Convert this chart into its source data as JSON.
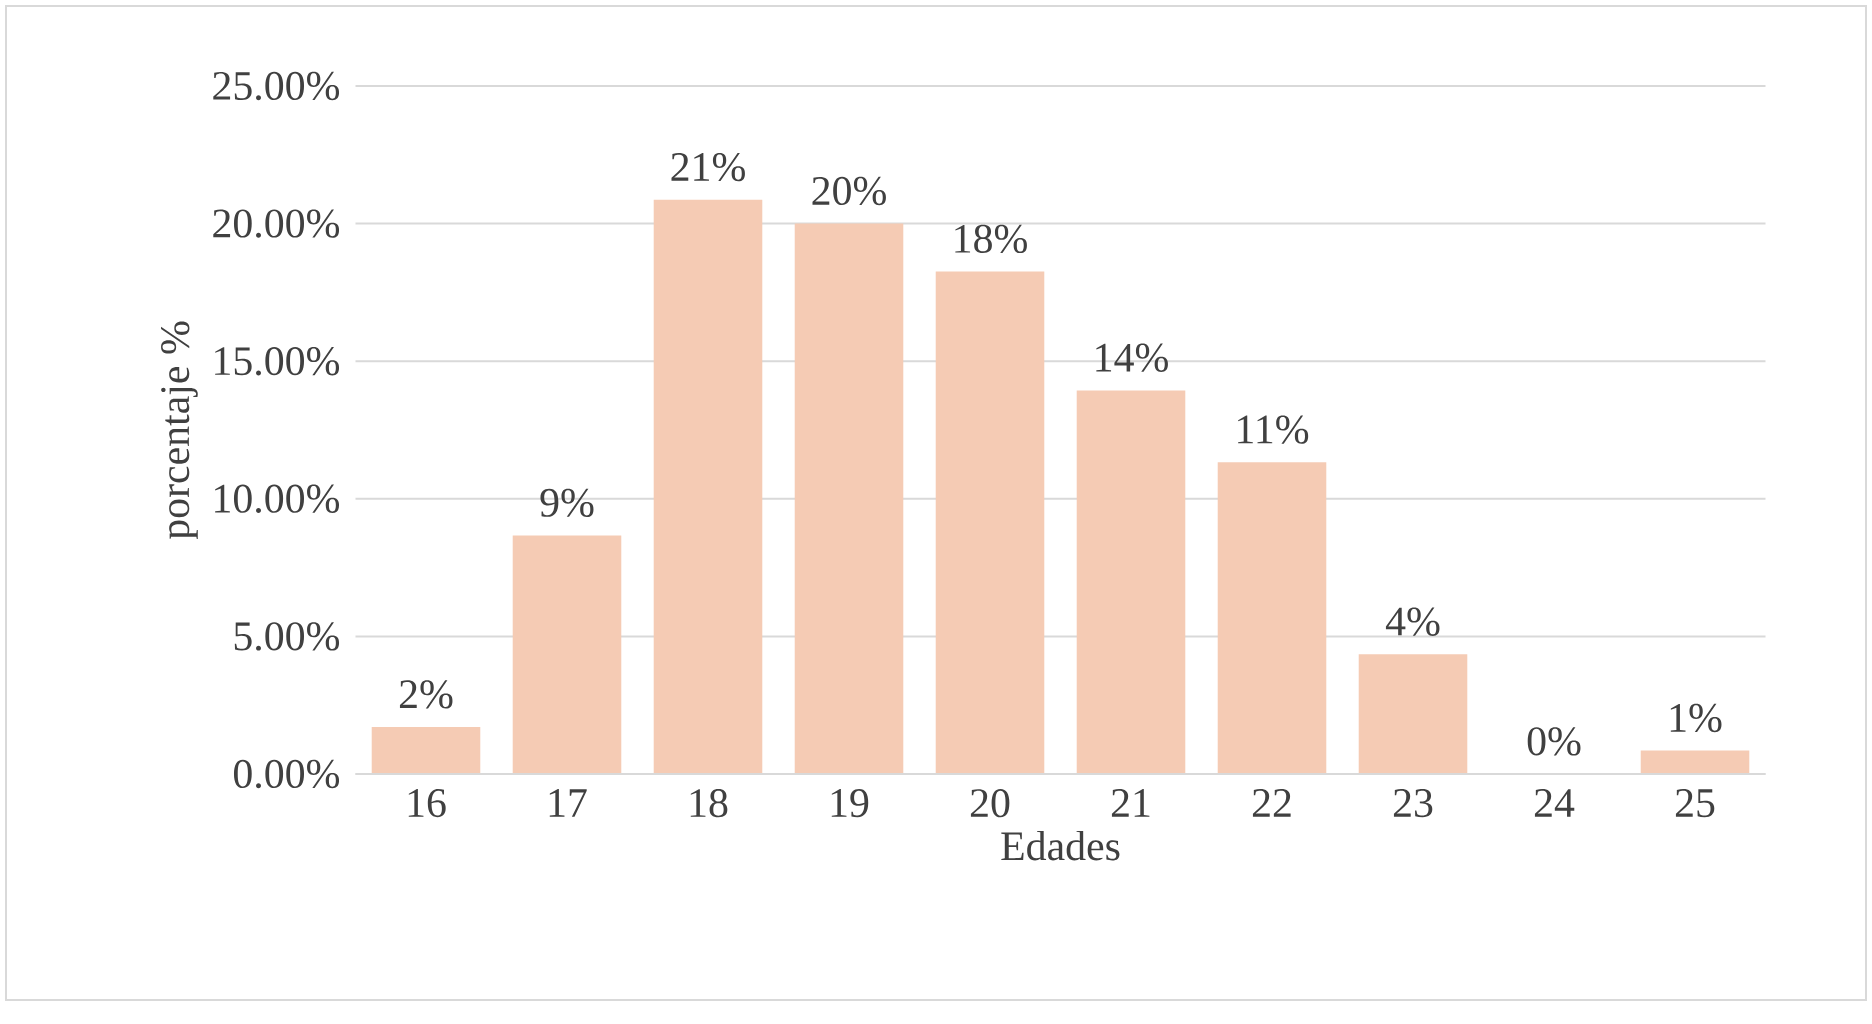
{
  "chart_data": {
    "type": "bar",
    "xlabel": "Edades",
    "ylabel": "porcentaje %",
    "categories": [
      "16",
      "17",
      "18",
      "19",
      "20",
      "21",
      "22",
      "23",
      "24",
      "25"
    ],
    "values": [
      1.71,
      8.67,
      20.87,
      20.0,
      18.26,
      13.94,
      11.33,
      4.35,
      0,
      0.85
    ],
    "value_labels": [
      "2%",
      "9%",
      "21%",
      "20%",
      "18%",
      "14%",
      "11%",
      "4%",
      "0%",
      "1%"
    ],
    "color": "#f5cbb4",
    "ylim": [
      0,
      25
    ],
    "yticks": [
      {
        "value": 0,
        "label": "0.00%"
      },
      {
        "value": 5,
        "label": "5.00%"
      },
      {
        "value": 10,
        "label": "10.00%"
      },
      {
        "value": 15,
        "label": "15.00%"
      },
      {
        "value": 20,
        "label": "20.00%"
      },
      {
        "value": 25,
        "label": "25.00%"
      }
    ],
    "grid": "y"
  }
}
